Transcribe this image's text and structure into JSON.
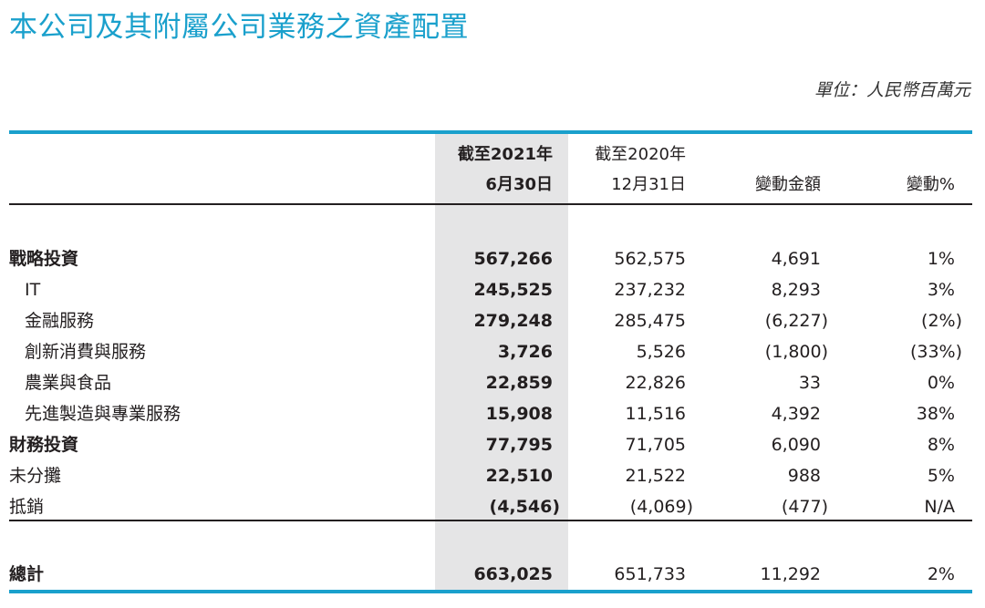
{
  "title": "本公司及其附屬公司業務之資產配置",
  "unit": "單位：人民幣百萬元",
  "columns": [
    {
      "line1": "截至2021年",
      "line2": "6月30日"
    },
    {
      "line1": "截至2020年",
      "line2": "12月31日"
    },
    {
      "line1": "",
      "line2": "變動金額"
    },
    {
      "line1": "",
      "line2": "變動%"
    }
  ],
  "rows": [
    {
      "label": "戰略投資",
      "v1": "567,266",
      "v2": "562,575",
      "v3": "4,691",
      "v4": "1%"
    },
    {
      "label": "IT",
      "v1": "245,525",
      "v2": "237,232",
      "v3": "8,293",
      "v4": "3%"
    },
    {
      "label": "金融服務",
      "v1": "279,248",
      "v2": "285,475",
      "v3": "(6,227)",
      "v4": "(2%)"
    },
    {
      "label": "創新消費與服務",
      "v1": "3,726",
      "v2": "5,526",
      "v3": "(1,800)",
      "v4": "(33%)"
    },
    {
      "label": "農業與食品",
      "v1": "22,859",
      "v2": "22,826",
      "v3": "33",
      "v4": "0%"
    },
    {
      "label": "先進製造與專業服務",
      "v1": "15,908",
      "v2": "11,516",
      "v3": "4,392",
      "v4": "38%"
    },
    {
      "label": "財務投資",
      "v1": "77,795",
      "v2": "71,705",
      "v3": "6,090",
      "v4": "8%"
    },
    {
      "label": "未分攤",
      "v1": "22,510",
      "v2": "21,522",
      "v3": "988",
      "v4": "5%"
    },
    {
      "label": "抵銷",
      "v1": "(4,546)",
      "v2": "(4,069)",
      "v3": "(477)",
      "v4": "N/A"
    }
  ],
  "total": {
    "label": "總計",
    "v1": "663,025",
    "v2": "651,733",
    "v3": "11,292",
    "v4": "2%"
  }
}
